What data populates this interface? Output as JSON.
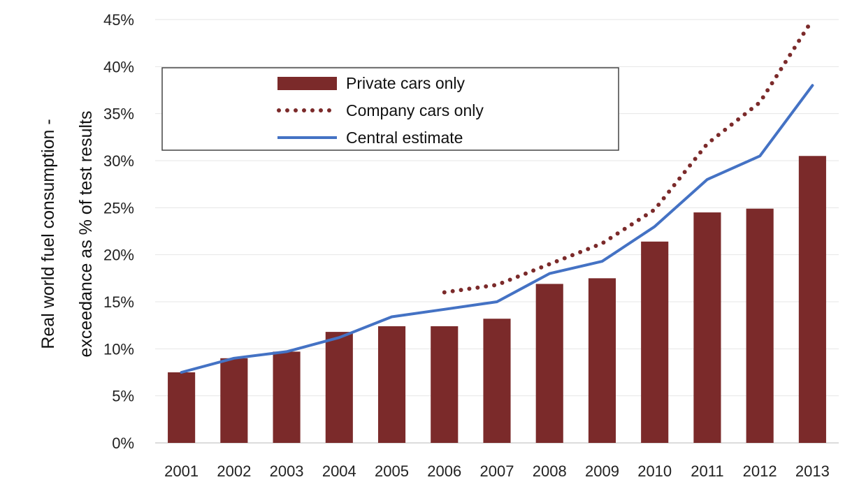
{
  "chart_data": {
    "type": "bar",
    "categories": [
      "2001",
      "2002",
      "2003",
      "2004",
      "2005",
      "2006",
      "2007",
      "2008",
      "2009",
      "2010",
      "2011",
      "2012",
      "2013"
    ],
    "series": [
      {
        "name": "Private cars only",
        "type": "bar",
        "color": "#7b2a2a",
        "values": [
          7.5,
          9.0,
          9.7,
          11.8,
          12.4,
          12.4,
          13.2,
          16.9,
          17.5,
          21.4,
          24.5,
          24.9,
          30.5
        ]
      },
      {
        "name": "Company cars only",
        "type": "line",
        "style": "dotted",
        "color": "#7b2a2a",
        "values": [
          null,
          null,
          null,
          null,
          null,
          16.0,
          16.8,
          19.0,
          21.2,
          24.8,
          31.8,
          36.2,
          45.0
        ]
      },
      {
        "name": "Central estimate",
        "type": "line",
        "style": "solid",
        "color": "#4472c4",
        "values": [
          7.5,
          9.0,
          9.7,
          11.2,
          13.4,
          14.2,
          15.0,
          18.0,
          19.3,
          23.0,
          28.0,
          30.5,
          38.0
        ]
      }
    ],
    "yticks": [
      "0%",
      "5%",
      "10%",
      "15%",
      "20%",
      "25%",
      "30%",
      "35%",
      "40%",
      "45%"
    ],
    "ylim": [
      0,
      45
    ],
    "ylabel_lines": [
      "Real world fuel consumption -",
      "exceedance as % of test results"
    ],
    "xlabel": "",
    "grid": true,
    "legend_position": "top-left"
  }
}
